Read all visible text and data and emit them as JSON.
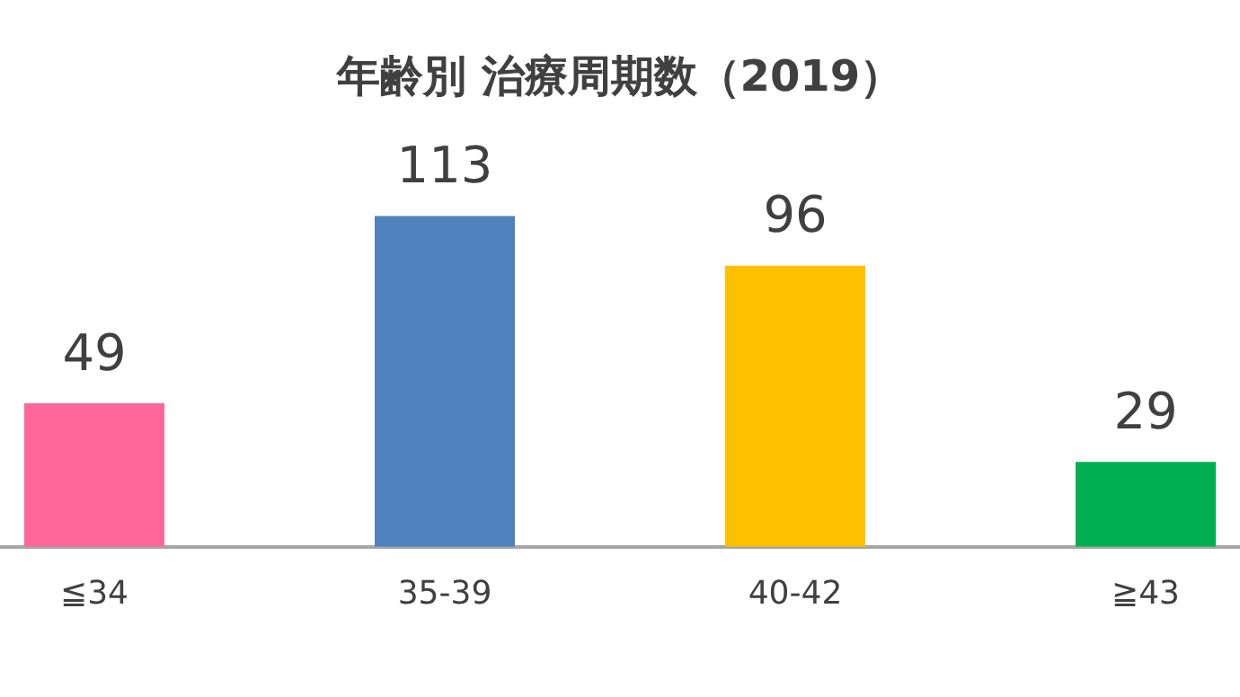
{
  "chart_data": {
    "type": "bar",
    "title": "年齢別 治療周期数（2019）",
    "categories": [
      "≦34",
      "35-39",
      "40-42",
      "≧43"
    ],
    "values": [
      49,
      113,
      96,
      29
    ],
    "colors": [
      "#ff6699",
      "#4f81bd",
      "#ffc000",
      "#00b050"
    ],
    "data_labels": true,
    "grid": false,
    "legend": false
  }
}
